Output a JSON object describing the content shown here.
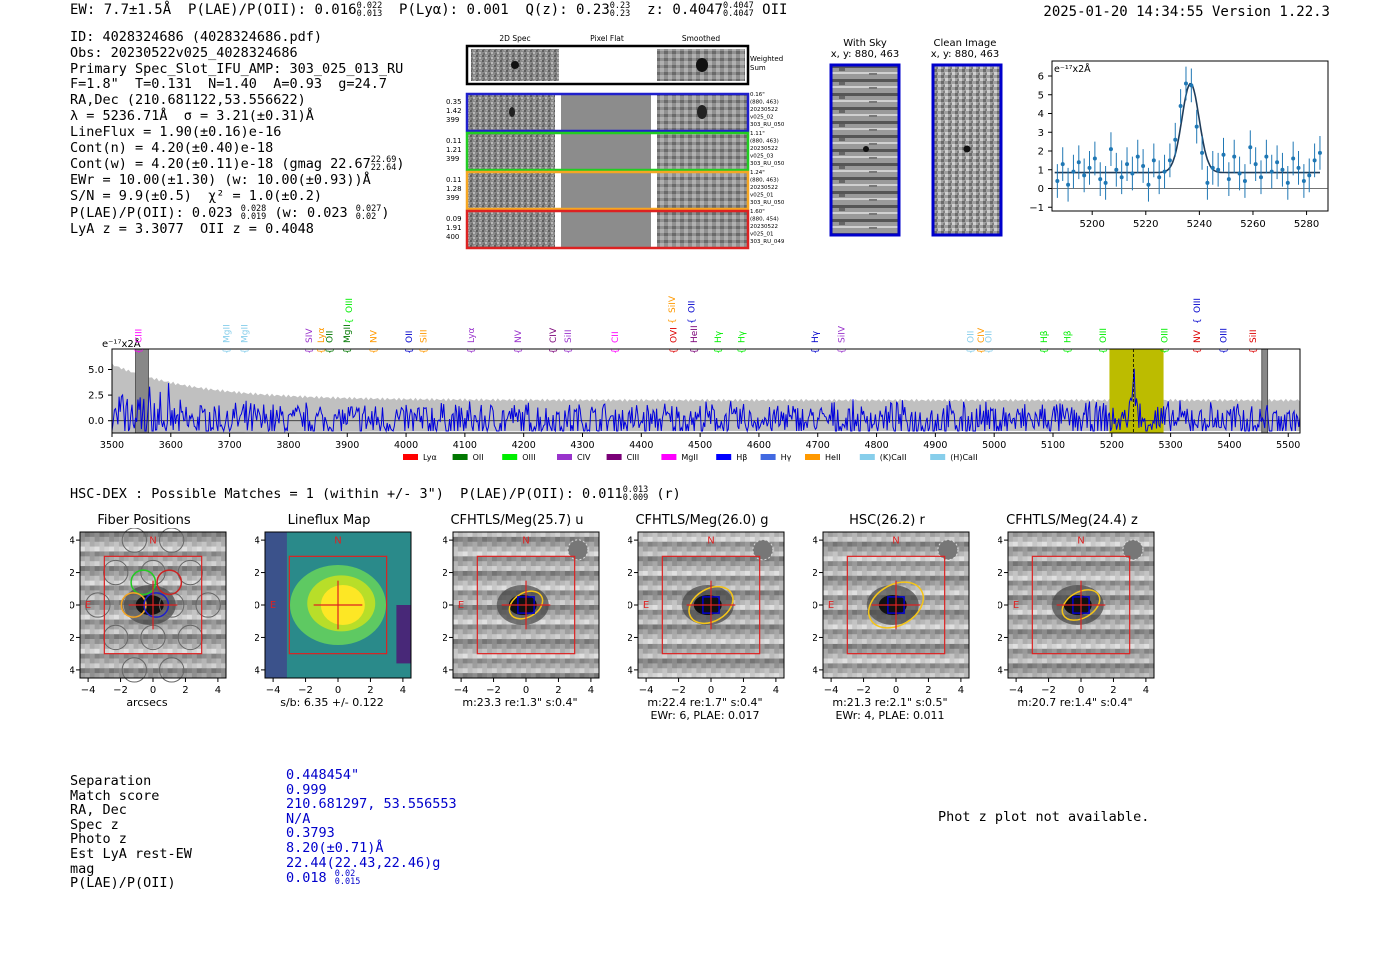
{
  "top": {
    "ew": "EW: 7.7±1.5Å",
    "plae_label": "P(LAE)/P(OII): 0.016",
    "plae_hi": "0.022",
    "plae_lo": "0.013",
    "plya": "P(Lyα): 0.001",
    "qz_label": "Q(z): 0.23",
    "qz_hi": "0.23",
    "qz_lo": "0.23",
    "z_label": "z: 0.4047",
    "z_hi": "0.4047",
    "z_lo": "0.4047",
    "z_line": "OII",
    "timestamp": "2025-01-20 14:34:55",
    "version": "Version 1.22.3"
  },
  "header": {
    "id": "ID: 4028324686 (4028324686.pdf)",
    "obs": "Obs: 20230522v025_4028324686",
    "primary": "Primary Spec_Slot_IFU_AMP: 303_025_013_RU",
    "fit": "F=1.8\"  T=0.131  N=1.40  A=0.93  g=24.7",
    "radec": "RA,Dec (210.681122,53.556622)",
    "lambda": "λ = 5236.71Å  σ = 3.21(±0.31)Å",
    "lineflux": "LineFlux = 1.90(±0.16)e-16",
    "contn": "Cont(n) = 4.20(±0.40)e-18",
    "contw": "Cont(w) = 4.20(±0.11)e-18 (gmag 22.67",
    "contw_hi": "22.69",
    "contw_lo": "22.64",
    "ewr": "EWr = 10.00(±1.30) (w: 10.00(±0.93))Å",
    "sn": "S/N = 9.9(±0.5)  χ² = 1.0(±0.2)",
    "plae": "P(LAE)/P(OII): 0.023",
    "plae_hi": "0.028",
    "plae_lo": "0.019",
    "plae_w": "(w: 0.023",
    "plae_w_hi": "0.027",
    "plae_w_lo": "0.02",
    "lya": "LyA z = 3.3077  OII z = 0.4048"
  },
  "cutouts": {
    "col_2d": "2D Spec",
    "col_flat": "Pixel Flat",
    "col_smooth": "Smoothed",
    "weighted": "Weighted Sum",
    "fibers": [
      {
        "left": [
          "0.35",
          "1.42",
          "399"
        ],
        "right": [
          "0.16\"",
          "(880, 463)",
          "20230522",
          "v025_02",
          "303_RU_050"
        ],
        "color": "#1f1fcc"
      },
      {
        "left": [
          "0.11",
          "1.21",
          "399"
        ],
        "right": [
          "1.11\"",
          "(880, 463)",
          "20230522",
          "v025_03",
          "303_RU_050"
        ],
        "color": "#22cc22"
      },
      {
        "left": [
          "0.11",
          "1.28",
          "399"
        ],
        "right": [
          "1.24\"",
          "(880, 463)",
          "20230522",
          "v025_01",
          "303_RU_050"
        ],
        "color": "#f5a623"
      },
      {
        "left": [
          "0.09",
          "1.91",
          "400"
        ],
        "right": [
          "1.60\"",
          "(880, 454)",
          "20230522",
          "v025_01",
          "303_RU_049"
        ],
        "color": "#dd2222"
      }
    ],
    "with_sky": "With Sky",
    "with_sky_xy": "x, y: 880, 463",
    "clean": "Clean Image",
    "clean_xy": "x, y: 880, 463"
  },
  "zoom_chart": {
    "type": "scatter",
    "ylabel": "e⁻¹⁷x2Å",
    "xlim": [
      5185,
      5288
    ],
    "ylim": [
      -1.2,
      6.8
    ],
    "xticks": [
      5200,
      5220,
      5240,
      5260,
      5280
    ],
    "yticks": [
      -1,
      0,
      1,
      2,
      3,
      4,
      5,
      6
    ],
    "fit_center": 5236.7,
    "fit_sigma": 3.21,
    "fit_amp": 4.75,
    "fit_cont": 0.85,
    "points_x": [
      5187,
      5189,
      5191,
      5193,
      5195,
      5197,
      5199,
      5201,
      5203,
      5205,
      5207,
      5209,
      5211,
      5213,
      5215,
      5217,
      5219,
      5221,
      5223,
      5225,
      5227,
      5229,
      5231,
      5233,
      5235,
      5237,
      5239,
      5241,
      5243,
      5245,
      5247,
      5249,
      5251,
      5253,
      5255,
      5257,
      5259,
      5261,
      5263,
      5265,
      5267,
      5269,
      5271,
      5273,
      5275,
      5277,
      5279,
      5281,
      5283,
      5285
    ],
    "points_y": [
      0.4,
      1.3,
      0.2,
      0.9,
      1.4,
      0.7,
      1.1,
      1.6,
      0.5,
      0.3,
      2.1,
      1.0,
      0.6,
      1.3,
      0.8,
      1.7,
      1.2,
      0.2,
      1.5,
      0.6,
      0.9,
      1.5,
      2.6,
      4.4,
      5.6,
      5.5,
      3.3,
      1.9,
      0.3,
      1.1,
      1.0,
      1.8,
      0.5,
      1.7,
      0.8,
      0.4,
      2.2,
      1.3,
      0.6,
      1.7,
      0.9,
      1.4,
      1.0,
      0.3,
      1.6,
      1.1,
      0.4,
      0.7,
      1.5,
      1.9
    ],
    "yerr": 0.9
  },
  "spectrum": {
    "type": "line",
    "ylabel": "e⁻¹⁷x2Å",
    "xlim": [
      3500,
      5520
    ],
    "ylim": [
      -1.2,
      7.0
    ],
    "xticks": [
      3500,
      3600,
      3700,
      3800,
      3900,
      4000,
      4100,
      4200,
      4300,
      4400,
      4500,
      4600,
      4700,
      4800,
      4900,
      5000,
      5100,
      5200,
      5300,
      5400,
      5500
    ],
    "yticks": [
      0.0,
      2.5,
      5.0
    ],
    "ytick_labels": [
      "0.0",
      "2.5",
      "5.0"
    ],
    "highlight_band": [
      5196,
      5288
    ],
    "line_marker": 5236.7,
    "gray_boxes": [
      [
        3540,
        3562
      ],
      [
        5455,
        5465
      ]
    ],
    "line_labels": [
      {
        "name": "CIII",
        "x": 3545,
        "color": "#ff00ff",
        "tier": 2
      },
      {
        "name": "MgII",
        "x": 3695,
        "color": "#87ceeb",
        "tier": 2
      },
      {
        "name": "MgII",
        "x": 3725,
        "color": "#87ceeb",
        "tier": 2
      },
      {
        "name": "SIV",
        "x": 3835,
        "color": "#9933cc",
        "tier": 2
      },
      {
        "name": "Lyα",
        "x": 3855,
        "color": "#ff9900",
        "tier": 2
      },
      {
        "name": "OII",
        "x": 3870,
        "color": "#007700",
        "tier": 2
      },
      {
        "name": "MgII",
        "x": 3900,
        "color": "#007700",
        "tier": 2
      },
      {
        "name": "OIII",
        "x": 3903,
        "color": "#00ee00",
        "tier": 1
      },
      {
        "name": "NV",
        "x": 3945,
        "color": "#ff9900",
        "tier": 2
      },
      {
        "name": "OII",
        "x": 4005,
        "color": "#0000cc",
        "tier": 2
      },
      {
        "name": "SiII",
        "x": 4030,
        "color": "#ff9900",
        "tier": 2
      },
      {
        "name": "Lyα",
        "x": 4110,
        "color": "#9933cc",
        "tier": 2
      },
      {
        "name": "NV",
        "x": 4190,
        "color": "#9933cc",
        "tier": 2
      },
      {
        "name": "CIV",
        "x": 4250,
        "color": "#7a0077",
        "tier": 2
      },
      {
        "name": "SiII",
        "x": 4275,
        "color": "#9933cc",
        "tier": 2
      },
      {
        "name": "CII",
        "x": 4355,
        "color": "#ff00ff",
        "tier": 2
      },
      {
        "name": "SiIV",
        "x": 4452,
        "color": "#ff9900",
        "tier": 1
      },
      {
        "name": "OVI",
        "x": 4455,
        "color": "#dd0000",
        "tier": 2
      },
      {
        "name": "OII",
        "x": 4485,
        "color": "#0000cc",
        "tier": 1
      },
      {
        "name": "HeII",
        "x": 4490,
        "color": "#7a0077",
        "tier": 2
      },
      {
        "name": "Hγ",
        "x": 4530,
        "color": "#00ee00",
        "tier": 2
      },
      {
        "name": "Hγ",
        "x": 4570,
        "color": "#00ee00",
        "tier": 2
      },
      {
        "name": "Hγ",
        "x": 4695,
        "color": "#0000cc",
        "tier": 2
      },
      {
        "name": "SiIV",
        "x": 4740,
        "color": "#9933cc",
        "tier": 2
      },
      {
        "name": "OII",
        "x": 4960,
        "color": "#87ceeb",
        "tier": 2
      },
      {
        "name": "CIV",
        "x": 4978,
        "color": "#ff9900",
        "tier": 2
      },
      {
        "name": "OII",
        "x": 4990,
        "color": "#87ceeb",
        "tier": 2
      },
      {
        "name": "Hβ",
        "x": 5085,
        "color": "#00ee00",
        "tier": 2
      },
      {
        "name": "Hβ",
        "x": 5125,
        "color": "#00ee00",
        "tier": 2
      },
      {
        "name": "OIII",
        "x": 5185,
        "color": "#00ee00",
        "tier": 2
      },
      {
        "name": "OIII",
        "x": 5290,
        "color": "#00ee00",
        "tier": 2
      },
      {
        "name": "NV",
        "x": 5345,
        "color": "#dd0000",
        "tier": 2
      },
      {
        "name": "OIII",
        "x": 5345,
        "color": "#0000cc",
        "tier": 1
      },
      {
        "name": "OIII",
        "x": 5390,
        "color": "#0000cc",
        "tier": 2
      },
      {
        "name": "SiII",
        "x": 5440,
        "color": "#dd0000",
        "tier": 2
      }
    ],
    "legend": [
      {
        "label": "Lyα",
        "color": "#ff0000"
      },
      {
        "label": "OII",
        "color": "#007700"
      },
      {
        "label": "OIII",
        "color": "#00ee00"
      },
      {
        "label": "CIV",
        "color": "#9933cc"
      },
      {
        "label": "CIII",
        "color": "#7a0077"
      },
      {
        "label": "MgII",
        "color": "#ff00ff"
      },
      {
        "label": "Hβ",
        "color": "#0000ff"
      },
      {
        "label": "Hγ",
        "color": "#4169e1"
      },
      {
        "label": "HeII",
        "color": "#ff9900"
      },
      {
        "label": "(K)CaII",
        "color": "#87ceeb"
      },
      {
        "label": "(H)CaII",
        "color": "#87ceeb"
      }
    ]
  },
  "match": {
    "text": "HSC-DEX : Possible Matches = 1 (within +/- 3\")  P(LAE)/P(OII): 0.011",
    "hi": "0.013",
    "lo": "0.009",
    "band": "(r)"
  },
  "panels": [
    {
      "title": "Fiber Positions",
      "caption": [
        "arcsecs"
      ],
      "kind": "fiber"
    },
    {
      "title": "Lineflux Map",
      "caption": [
        "s/b: 6.35 +/- 0.122"
      ],
      "kind": "lineflux"
    },
    {
      "title": "CFHTLS/Meg(25.7) u",
      "caption": [
        "m:23.3  re:1.3\"  s:0.4\""
      ],
      "kind": "img",
      "ell": [
        1.1,
        0.75
      ]
    },
    {
      "title": "CFHTLS/Meg(26.0) g",
      "caption": [
        "m:22.4  re:1.7\"  s:0.4\"",
        "EWr: 6, PLAE: 0.017"
      ],
      "kind": "img",
      "ell": [
        1.45,
        1.0
      ]
    },
    {
      "title": "HSC(26.2) r",
      "caption": [
        "m:21.3  re:2.1\"  s:0.5\"",
        "EWr: 4, PLAE: 0.011"
      ],
      "kind": "img",
      "ell": [
        1.8,
        1.25
      ]
    },
    {
      "title": "CFHTLS/Meg(24.4) z",
      "caption": [
        "m:20.7  re:1.4\"  s:0.4\""
      ],
      "kind": "img",
      "ell": [
        1.25,
        0.8
      ]
    }
  ],
  "panel_axes": {
    "ticks": [
      -4,
      -2,
      0,
      2,
      4
    ],
    "tick_labels": [
      "−4",
      "−2",
      "0",
      "2",
      "4"
    ],
    "north": "N",
    "east": "E"
  },
  "table": {
    "labels": [
      "Separation",
      "Match score",
      "RA, Dec",
      "Spec z",
      "Photo z",
      "Est LyA rest-EW",
      "mag",
      "P(LAE)/P(OII)"
    ],
    "values": [
      "0.448454\"",
      "0.999",
      "210.681297, 53.556553",
      "N/A",
      "0.3793",
      "8.20(±0.71)Å",
      "22.44(22.43,22.46)g",
      "0.018"
    ],
    "plae_hi": "0.02",
    "plae_lo": "0.015"
  },
  "photz": "Phot z plot not available."
}
